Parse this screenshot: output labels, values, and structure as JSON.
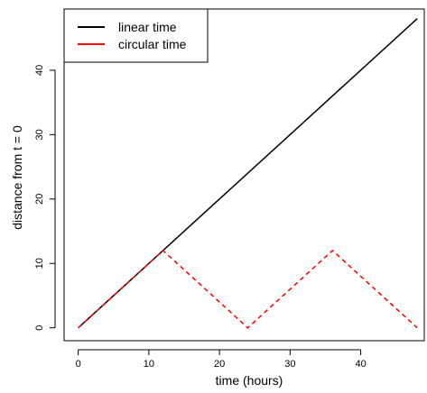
{
  "chart_data": {
    "type": "line",
    "xlabel": "time (hours)",
    "ylabel": "distance from t = 0",
    "xlim": [
      -2,
      49
    ],
    "ylim": [
      -2,
      49.5
    ],
    "xticks": [
      0,
      10,
      20,
      30,
      40
    ],
    "yticks": [
      0,
      10,
      20,
      30,
      40
    ],
    "grid": false,
    "legend_position": "top-left",
    "series": [
      {
        "name": "linear time",
        "color": "#000000",
        "style": "solid",
        "x": [
          0,
          48
        ],
        "y": [
          0,
          48
        ]
      },
      {
        "name": "circular time",
        "color": "#ff0000",
        "style": "dashed",
        "x": [
          0,
          12,
          24,
          36,
          48
        ],
        "y": [
          0,
          12,
          0,
          12,
          0
        ]
      }
    ]
  }
}
